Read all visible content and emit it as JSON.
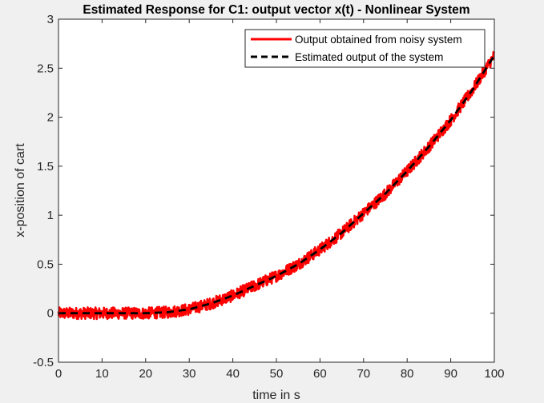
{
  "chart_data": {
    "type": "line",
    "title": "Estimated Response for C1: output vector x(t) - Nonlinear System",
    "xlabel": "time in s",
    "ylabel": "x-position of cart",
    "xlim": [
      0,
      100
    ],
    "ylim": [
      -0.5,
      3
    ],
    "xticks": [
      0,
      10,
      20,
      30,
      40,
      50,
      60,
      70,
      80,
      90,
      100
    ],
    "yticks": [
      -0.5,
      0,
      0.5,
      1,
      1.5,
      2,
      2.5,
      3
    ],
    "xtick_labels": [
      "0",
      "10",
      "20",
      "30",
      "40",
      "50",
      "60",
      "70",
      "80",
      "90",
      "100"
    ],
    "ytick_labels": [
      "-0.5",
      "0",
      "0.5",
      "1",
      "1.5",
      "2",
      "2.5",
      "3"
    ],
    "grid": false,
    "legend_position": "top-right",
    "x": [
      0,
      10,
      20,
      25,
      30,
      35,
      40,
      45,
      50,
      55,
      60,
      65,
      70,
      75,
      80,
      85,
      90,
      95,
      100
    ],
    "series": [
      {
        "name": "Output obtained from noisy system",
        "color": "#ff0000",
        "style": "solid",
        "noise_amplitude": 0.06,
        "values": [
          0,
          0,
          0,
          0.01,
          0.04,
          0.1,
          0.18,
          0.28,
          0.38,
          0.5,
          0.65,
          0.82,
          1.02,
          1.22,
          1.45,
          1.7,
          1.97,
          2.28,
          2.63
        ]
      },
      {
        "name": "Estimated output of the system",
        "color": "#000000",
        "style": "dashed",
        "values": [
          0,
          0,
          0,
          0.01,
          0.04,
          0.1,
          0.18,
          0.28,
          0.38,
          0.5,
          0.65,
          0.82,
          1.02,
          1.22,
          1.45,
          1.7,
          1.97,
          2.28,
          2.63
        ]
      }
    ]
  }
}
